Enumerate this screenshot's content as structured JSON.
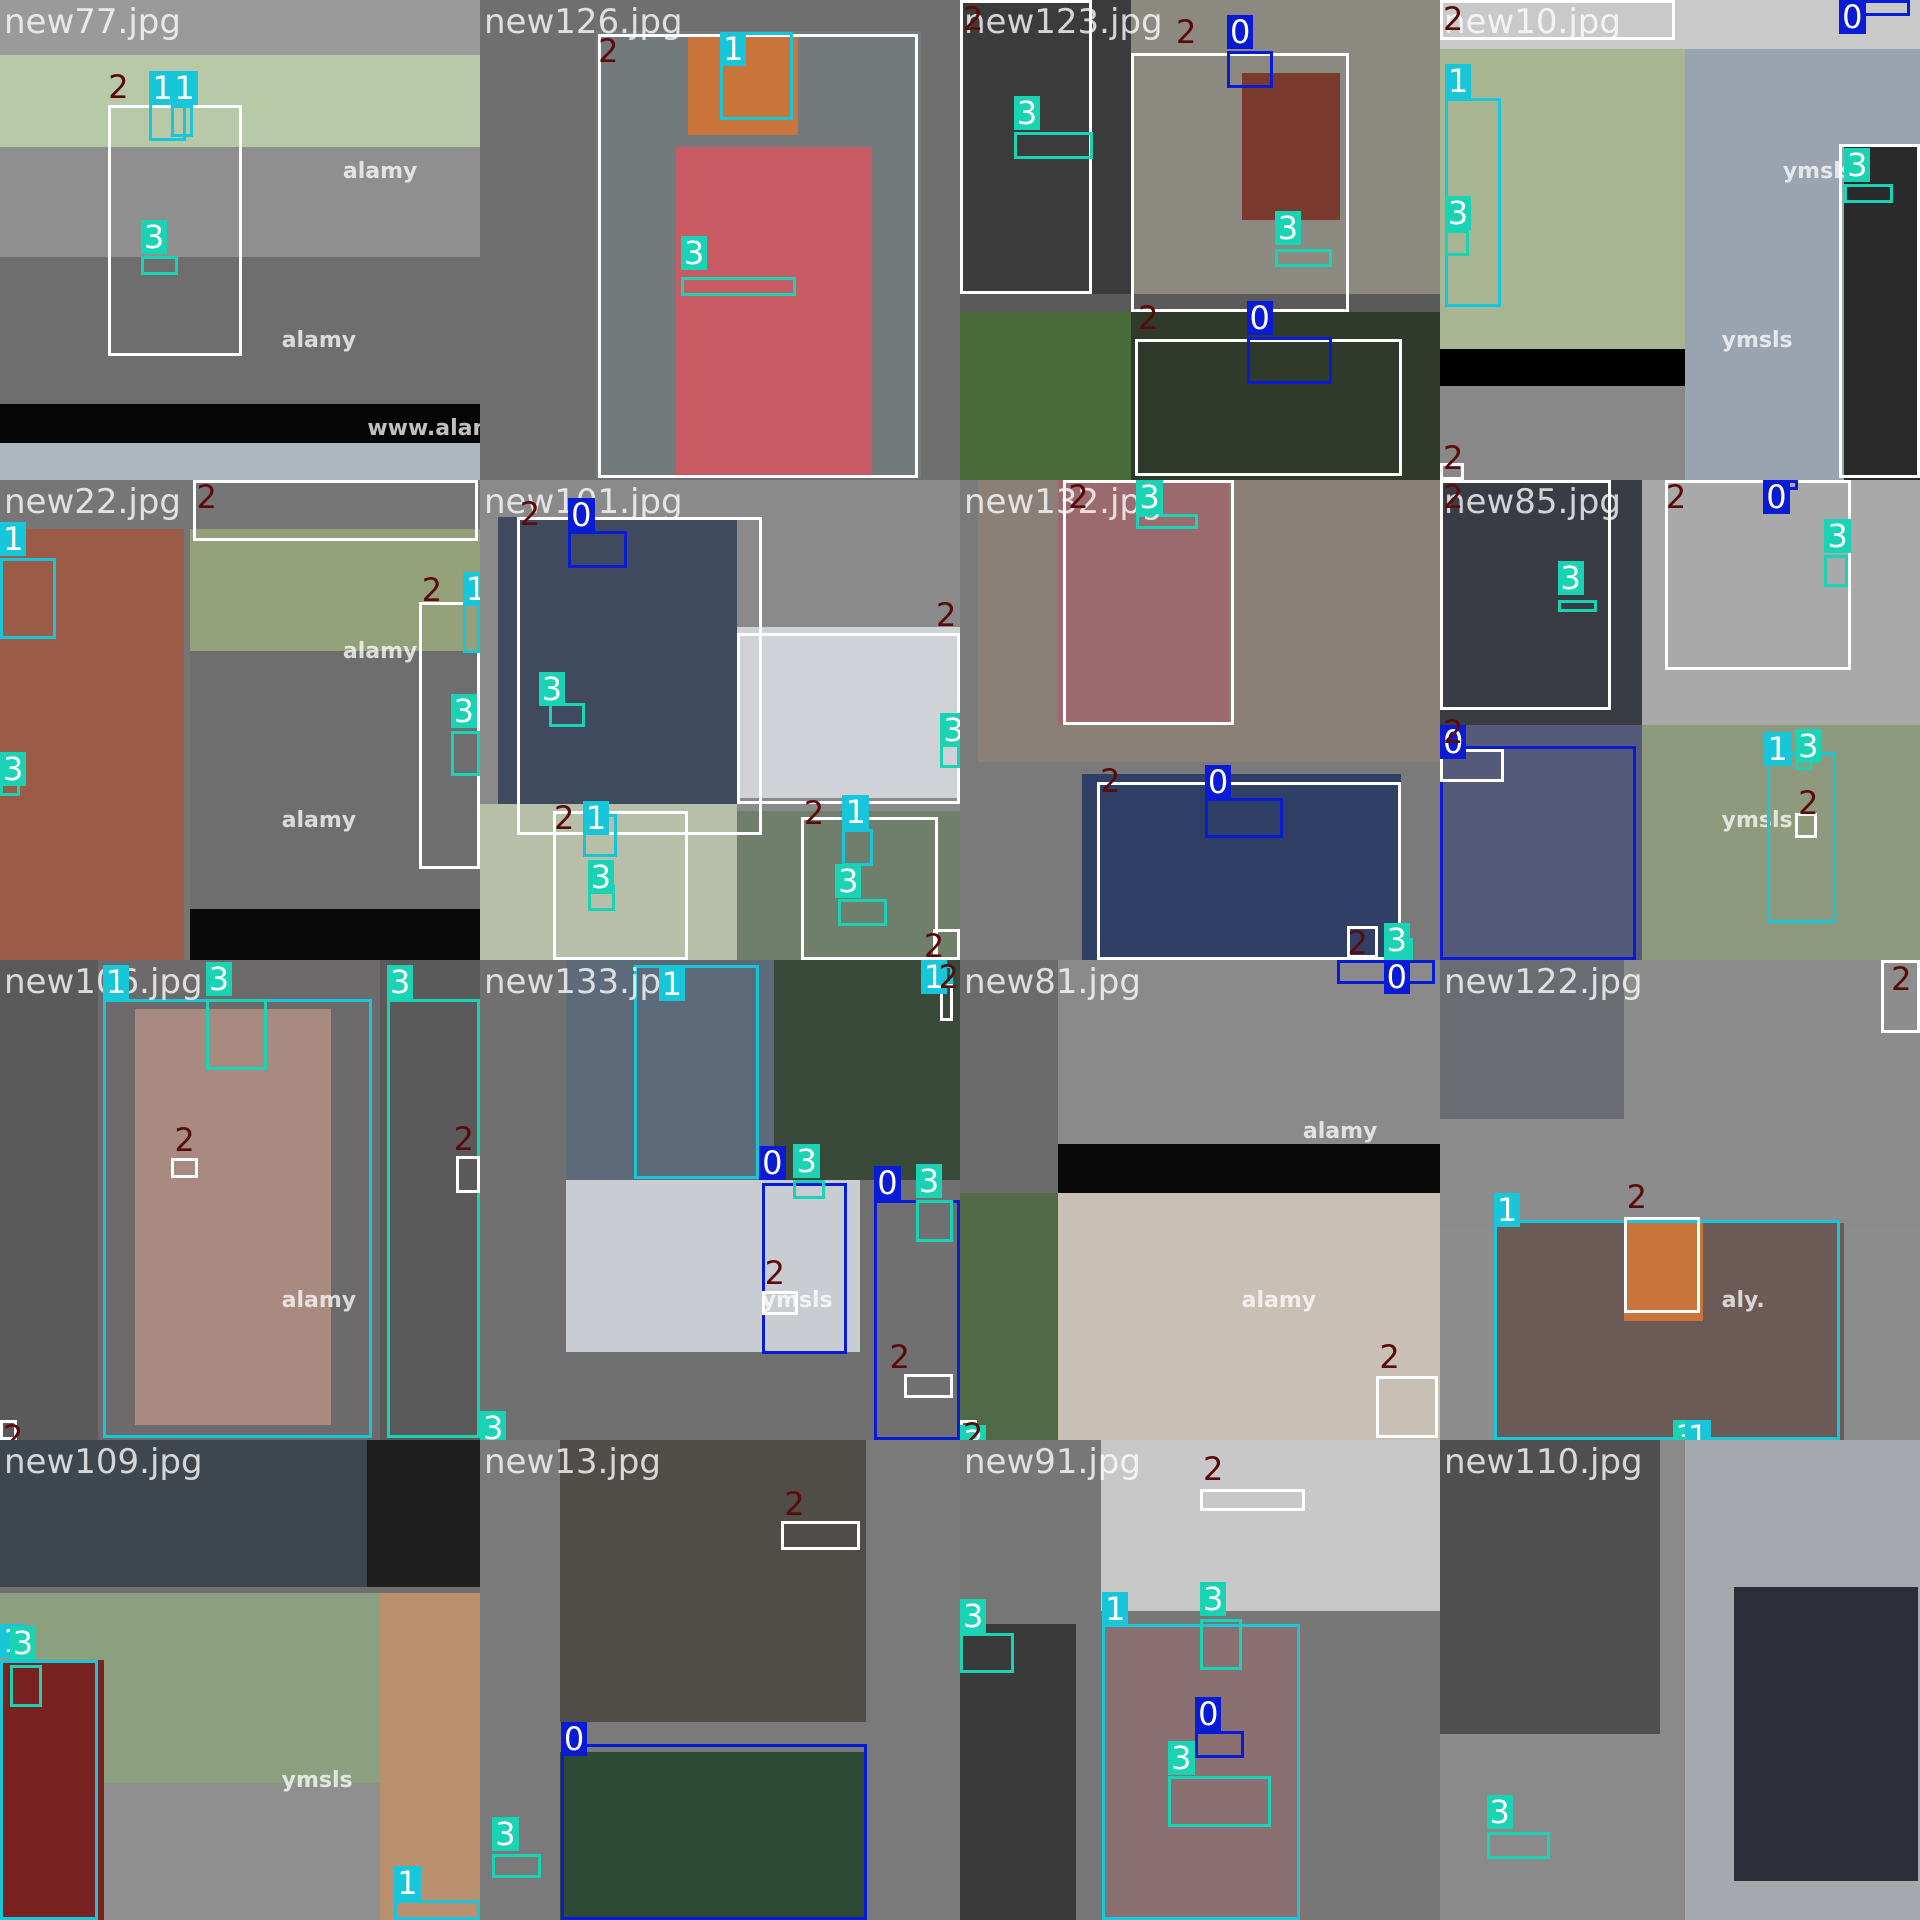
{
  "mosaic": {
    "class_colors": {
      "0": "#0a1bd6",
      "1": "#17c6d8",
      "2": "#ffffff",
      "3": "#1ad2b4"
    },
    "label_colors": {
      "0": {
        "bg": "#0a1bd6",
        "fg": "#ffffff"
      },
      "1": {
        "bg": "#17c6d8",
        "fg": "#ffffff"
      },
      "2": {
        "bg": "transparent",
        "fg": "#5a0a0a"
      },
      "3": {
        "bg": "#1ad2b4",
        "fg": "#ffffff"
      }
    },
    "tiles": [
      {
        "file": "new77.jpg",
        "watermarks": [
          "alamy",
          "alamy",
          "www.alamy.com"
        ]
      },
      {
        "file": "new126.jpg",
        "watermarks": []
      },
      {
        "file": "new123.jpg",
        "watermarks": []
      },
      {
        "file": "new10.jpg",
        "watermarks": [
          "ymsls",
          "ymsls"
        ]
      },
      {
        "file": "new22.jpg",
        "watermarks": [
          "alamy",
          "alamy"
        ]
      },
      {
        "file": "new101.jpg",
        "watermarks": []
      },
      {
        "file": "new132.jpg",
        "watermarks": []
      },
      {
        "file": "new85.jpg",
        "watermarks": [
          "ymsls"
        ]
      },
      {
        "file": "new106.jpg",
        "watermarks": [
          "alamy"
        ]
      },
      {
        "file": "new133.jpg",
        "watermarks": [
          "ymsls"
        ]
      },
      {
        "file": "new81.jpg",
        "watermarks": [
          "alamy",
          "alamy"
        ]
      },
      {
        "file": "new122.jpg",
        "watermarks": [
          "aly."
        ]
      },
      {
        "file": "new109.jpg",
        "watermarks": [
          "ymsls"
        ]
      },
      {
        "file": "new13.jpg",
        "watermarks": []
      },
      {
        "file": "new91.jpg",
        "watermarks": []
      },
      {
        "file": "new110.jpg",
        "watermarks": []
      }
    ],
    "detections": [
      {
        "tile": 0,
        "cls": "2",
        "text": "2"
      },
      {
        "tile": 0,
        "cls": "1",
        "text": "1"
      },
      {
        "tile": 0,
        "cls": "1",
        "text": "1"
      },
      {
        "tile": 0,
        "cls": "3",
        "text": "3"
      },
      {
        "tile": 1,
        "cls": "2",
        "text": "2"
      },
      {
        "tile": 1,
        "cls": "1",
        "text": "1"
      },
      {
        "tile": 1,
        "cls": "3",
        "text": "3"
      },
      {
        "tile": 2,
        "cls": "2",
        "text": "2"
      },
      {
        "tile": 2,
        "cls": "3",
        "text": "3"
      },
      {
        "tile": 2,
        "cls": "2",
        "text": "2"
      },
      {
        "tile": 2,
        "cls": "0",
        "text": "0"
      },
      {
        "tile": 2,
        "cls": "3",
        "text": "3"
      },
      {
        "tile": 2,
        "cls": "2",
        "text": "2"
      },
      {
        "tile": 2,
        "cls": "0",
        "text": "0"
      },
      {
        "tile": 3,
        "cls": "2",
        "text": "2"
      },
      {
        "tile": 3,
        "cls": "1",
        "text": "1"
      },
      {
        "tile": 3,
        "cls": "3",
        "text": "3"
      },
      {
        "tile": 3,
        "cls": "2",
        "text": "2"
      },
      {
        "tile": 3,
        "cls": "2",
        "text": "2"
      },
      {
        "tile": 3,
        "cls": "0",
        "text": "0"
      },
      {
        "tile": 3,
        "cls": "3",
        "text": "3"
      },
      {
        "tile": 4,
        "cls": "2",
        "text": "2"
      },
      {
        "tile": 4,
        "cls": "1",
        "text": "1"
      },
      {
        "tile": 4,
        "cls": "3",
        "text": "3"
      },
      {
        "tile": 4,
        "cls": "2",
        "text": "2"
      },
      {
        "tile": 4,
        "cls": "1",
        "text": "1"
      },
      {
        "tile": 4,
        "cls": "3",
        "text": "3"
      },
      {
        "tile": 5,
        "cls": "2",
        "text": "2"
      },
      {
        "tile": 5,
        "cls": "0",
        "text": "0"
      },
      {
        "tile": 5,
        "cls": "3",
        "text": "3"
      },
      {
        "tile": 5,
        "cls": "2",
        "text": "2"
      },
      {
        "tile": 5,
        "cls": "3",
        "text": "3"
      },
      {
        "tile": 5,
        "cls": "2",
        "text": "2"
      },
      {
        "tile": 5,
        "cls": "1",
        "text": "1"
      },
      {
        "tile": 5,
        "cls": "3",
        "text": "3"
      },
      {
        "tile": 5,
        "cls": "2",
        "text": "2"
      },
      {
        "tile": 5,
        "cls": "1",
        "text": "1"
      },
      {
        "tile": 5,
        "cls": "3",
        "text": "3"
      },
      {
        "tile": 5,
        "cls": "2",
        "text": "2"
      },
      {
        "tile": 6,
        "cls": "2",
        "text": "2"
      },
      {
        "tile": 6,
        "cls": "3",
        "text": "3"
      },
      {
        "tile": 6,
        "cls": "2",
        "text": "2"
      },
      {
        "tile": 6,
        "cls": "0",
        "text": "0"
      },
      {
        "tile": 6,
        "cls": "2",
        "text": "2"
      },
      {
        "tile": 6,
        "cls": "3",
        "text": "3"
      },
      {
        "tile": 7,
        "cls": "2",
        "text": "2"
      },
      {
        "tile": 7,
        "cls": "3",
        "text": "3"
      },
      {
        "tile": 7,
        "cls": "2",
        "text": "2"
      },
      {
        "tile": 7,
        "cls": "0",
        "text": "0"
      },
      {
        "tile": 7,
        "cls": "3",
        "text": "3"
      },
      {
        "tile": 7,
        "cls": "0",
        "text": "0"
      },
      {
        "tile": 7,
        "cls": "2",
        "text": "2"
      },
      {
        "tile": 7,
        "cls": "1",
        "text": "1"
      },
      {
        "tile": 7,
        "cls": "3",
        "text": "3"
      },
      {
        "tile": 7,
        "cls": "2",
        "text": "2"
      },
      {
        "tile": 8,
        "cls": "2",
        "text": "2"
      },
      {
        "tile": 8,
        "cls": "1",
        "text": "1"
      },
      {
        "tile": 8,
        "cls": "3",
        "text": "3"
      },
      {
        "tile": 8,
        "cls": "2",
        "text": "2"
      },
      {
        "tile": 8,
        "cls": "3",
        "text": "3"
      },
      {
        "tile": 8,
        "cls": "2",
        "text": "2"
      },
      {
        "tile": 9,
        "cls": "3",
        "text": "3"
      },
      {
        "tile": 9,
        "cls": "1",
        "text": "1"
      },
      {
        "tile": 9,
        "cls": "1",
        "text": "1"
      },
      {
        "tile": 9,
        "cls": "2",
        "text": "2"
      },
      {
        "tile": 9,
        "cls": "0",
        "text": "0"
      },
      {
        "tile": 9,
        "cls": "3",
        "text": "3"
      },
      {
        "tile": 9,
        "cls": "2",
        "text": "2"
      },
      {
        "tile": 9,
        "cls": "0",
        "text": "0"
      },
      {
        "tile": 9,
        "cls": "3",
        "text": "3"
      },
      {
        "tile": 9,
        "cls": "2",
        "text": "2"
      },
      {
        "tile": 10,
        "cls": "3",
        "text": "3"
      },
      {
        "tile": 10,
        "cls": "0",
        "text": "0"
      },
      {
        "tile": 10,
        "cls": "2",
        "text": "2"
      },
      {
        "tile": 10,
        "cls": "2",
        "text": "2"
      },
      {
        "tile": 11,
        "cls": "3",
        "text": "3"
      },
      {
        "tile": 11,
        "cls": "2",
        "text": "2"
      },
      {
        "tile": 11,
        "cls": "1",
        "text": "1"
      },
      {
        "tile": 11,
        "cls": "2",
        "text": "2"
      },
      {
        "tile": 11,
        "cls": "1",
        "text": "1"
      },
      {
        "tile": 12,
        "cls": "1",
        "text": "1"
      },
      {
        "tile": 12,
        "cls": "1",
        "text": "1"
      },
      {
        "tile": 12,
        "cls": "3",
        "text": "3"
      },
      {
        "tile": 13,
        "cls": "3",
        "text": "3"
      },
      {
        "tile": 13,
        "cls": "2",
        "text": "2"
      },
      {
        "tile": 13,
        "cls": "0",
        "text": "0"
      },
      {
        "tile": 14,
        "cls": "3",
        "text": "3"
      },
      {
        "tile": 14,
        "cls": "2",
        "text": "2"
      },
      {
        "tile": 14,
        "cls": "1",
        "text": "1"
      },
      {
        "tile": 14,
        "cls": "3",
        "text": "3"
      },
      {
        "tile": 14,
        "cls": "0",
        "text": "0"
      },
      {
        "tile": 14,
        "cls": "3",
        "text": "3"
      },
      {
        "tile": 15,
        "cls": "3",
        "text": "3"
      }
    ]
  }
}
